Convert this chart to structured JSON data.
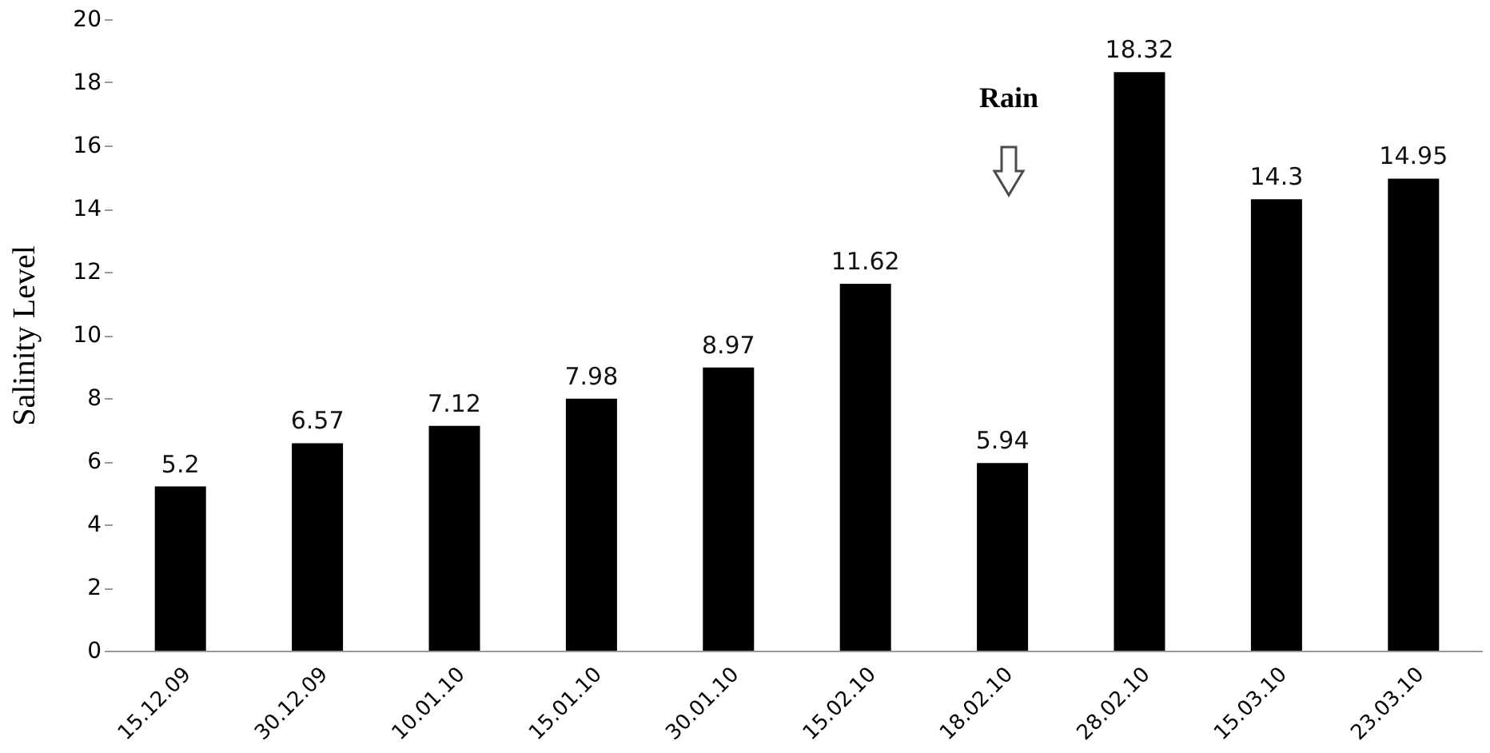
{
  "chart_data": {
    "type": "bar",
    "ylabel": "Salinity Level",
    "categories": [
      "15.12.09",
      "30.12.09",
      "10.01.10",
      "15.01.10",
      "30.01.10",
      "15.02.10",
      "18.02.10",
      "28.02.10",
      "15.03.10",
      "23.03.10"
    ],
    "values": [
      5.2,
      6.57,
      7.12,
      7.98,
      8.97,
      11.62,
      5.94,
      18.32,
      14.3,
      14.95
    ],
    "value_labels": [
      "5.2",
      "6.57",
      "7.12",
      "7.98",
      "8.97",
      "11.62",
      "5.94",
      "18.32",
      "14.3",
      "14.95"
    ],
    "color": "#000000",
    "ylim": [
      0,
      20
    ],
    "yticks": [
      0,
      2,
      4,
      6,
      8,
      10,
      12,
      14,
      16,
      18,
      20
    ],
    "grid": false,
    "annotations": [
      "Rain"
    ]
  }
}
